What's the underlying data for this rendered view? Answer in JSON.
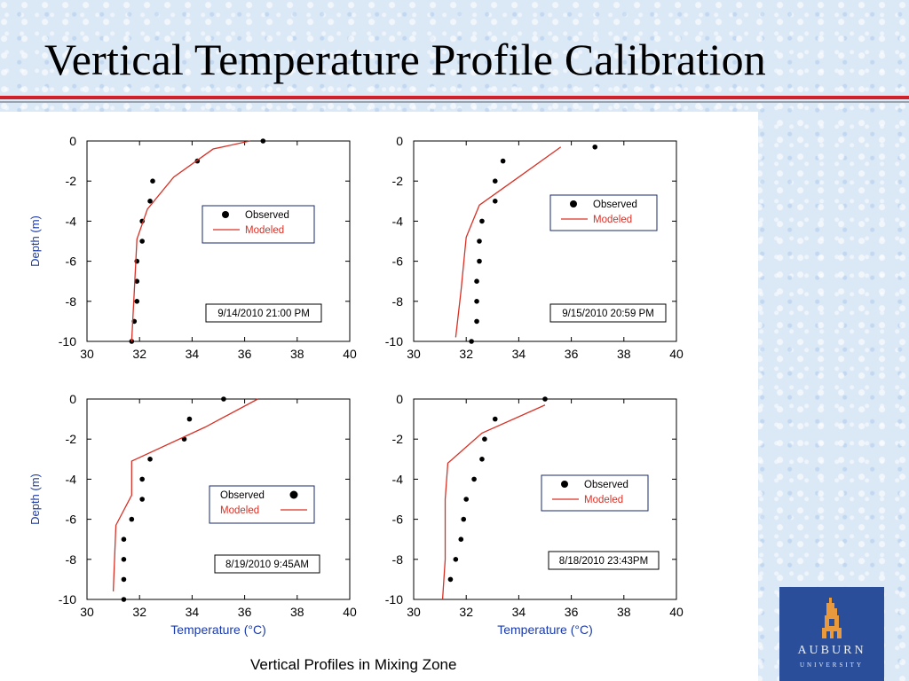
{
  "slide": {
    "title": "Vertical Temperature Profile Calibration",
    "caption": "Vertical Profiles in Mixing Zone"
  },
  "logo": {
    "name": "AUBURN",
    "subtitle": "UNIVERSITY",
    "icon": "auburn-tower-icon"
  },
  "colors": {
    "modeled": "#d93025",
    "axis_label": "#1a3aa8",
    "observed": "#000000"
  },
  "chart_data": [
    {
      "type": "scatter",
      "title": "",
      "xlabel": "",
      "ylabel": "Depth (m)",
      "xlim": [
        30,
        40
      ],
      "ylim": [
        -10,
        0
      ],
      "xticks": [
        30,
        32,
        34,
        36,
        38,
        40
      ],
      "yticks": [
        0,
        -2,
        -4,
        -6,
        -8,
        -10
      ],
      "timestamp": "9/14/2010 21:00 PM",
      "legend": {
        "position": "right",
        "observed_first": true
      },
      "series": [
        {
          "name": "Observed",
          "kind": "points",
          "x": [
            36.7,
            34.2,
            32.5,
            32.4,
            32.1,
            32.1,
            31.9,
            31.9,
            31.9,
            31.8,
            31.7
          ],
          "y": [
            0,
            -1,
            -2,
            -3,
            -4,
            -5,
            -6,
            -7,
            -8,
            -9,
            -10
          ]
        },
        {
          "name": "Modeled",
          "kind": "line",
          "x": [
            36.2,
            34.8,
            33.3,
            32.3,
            31.9,
            31.8,
            31.7
          ],
          "y": [
            0,
            -0.4,
            -1.8,
            -3.4,
            -4.9,
            -7.5,
            -10
          ]
        }
      ]
    },
    {
      "type": "scatter",
      "title": "",
      "xlabel": "",
      "ylabel": "",
      "xlim": [
        30,
        40
      ],
      "ylim": [
        -10,
        0
      ],
      "xticks": [
        30,
        32,
        34,
        36,
        38,
        40
      ],
      "yticks": [
        0,
        -2,
        -4,
        -6,
        -8,
        -10
      ],
      "timestamp": "9/15/2010 20:59 PM",
      "legend": {
        "position": "top-right",
        "observed_first": true
      },
      "series": [
        {
          "name": "Observed",
          "kind": "points",
          "x": [
            36.9,
            33.4,
            33.1,
            33.1,
            32.6,
            32.5,
            32.5,
            32.4,
            32.4,
            32.4,
            32.2
          ],
          "y": [
            -0.3,
            -1,
            -2,
            -3,
            -4,
            -5,
            -6,
            -7,
            -8,
            -9,
            -10
          ]
        },
        {
          "name": "Modeled",
          "kind": "line",
          "x": [
            35.6,
            34.0,
            32.5,
            32.0,
            31.8,
            31.6
          ],
          "y": [
            -0.3,
            -1.8,
            -3.2,
            -4.8,
            -7.5,
            -9.8
          ]
        }
      ]
    },
    {
      "type": "scatter",
      "title": "",
      "xlabel": "Temperature (°C)",
      "ylabel": "Depth (m)",
      "xlim": [
        30,
        40
      ],
      "ylim": [
        -10,
        0
      ],
      "xticks": [
        30,
        32,
        34,
        36,
        38,
        40
      ],
      "yticks": [
        0,
        -2,
        -4,
        -6,
        -8,
        -10
      ],
      "timestamp": "8/19/2010 9:45AM",
      "legend": {
        "position": "right",
        "observed_first": false
      },
      "series": [
        {
          "name": "Observed",
          "kind": "points",
          "x": [
            35.2,
            33.9,
            33.7,
            32.4,
            32.1,
            32.1,
            31.7,
            31.4,
            31.4,
            31.4,
            31.4
          ],
          "y": [
            0,
            -1,
            -2,
            -3,
            -4,
            -5,
            -6,
            -7,
            -8,
            -9,
            -10
          ]
        },
        {
          "name": "Modeled",
          "kind": "line",
          "x": [
            36.5,
            34.5,
            31.7,
            31.7,
            31.1,
            31.0
          ],
          "y": [
            0,
            -1.4,
            -3.1,
            -4.8,
            -6.3,
            -9.6
          ]
        }
      ]
    },
    {
      "type": "scatter",
      "title": "",
      "xlabel": "Temperature (°C)",
      "ylabel": "",
      "xlim": [
        30,
        40
      ],
      "ylim": [
        -10,
        0
      ],
      "xticks": [
        30,
        32,
        34,
        36,
        38,
        40
      ],
      "yticks": [
        0,
        -2,
        -4,
        -6,
        -8,
        -10
      ],
      "timestamp": "8/18/2010 23:43PM",
      "legend": {
        "position": "right",
        "observed_first": true
      },
      "series": [
        {
          "name": "Observed",
          "kind": "points",
          "x": [
            35.0,
            33.1,
            32.7,
            32.6,
            32.3,
            32.0,
            31.9,
            31.8,
            31.6,
            31.4
          ],
          "y": [
            0,
            -1,
            -2,
            -3,
            -4,
            -5,
            -6,
            -7,
            -8,
            -9
          ]
        },
        {
          "name": "Modeled",
          "kind": "line",
          "x": [
            35.0,
            32.6,
            31.3,
            31.2,
            31.2,
            31.1
          ],
          "y": [
            -0.3,
            -1.7,
            -3.2,
            -5.0,
            -8.0,
            -10
          ]
        }
      ]
    }
  ]
}
